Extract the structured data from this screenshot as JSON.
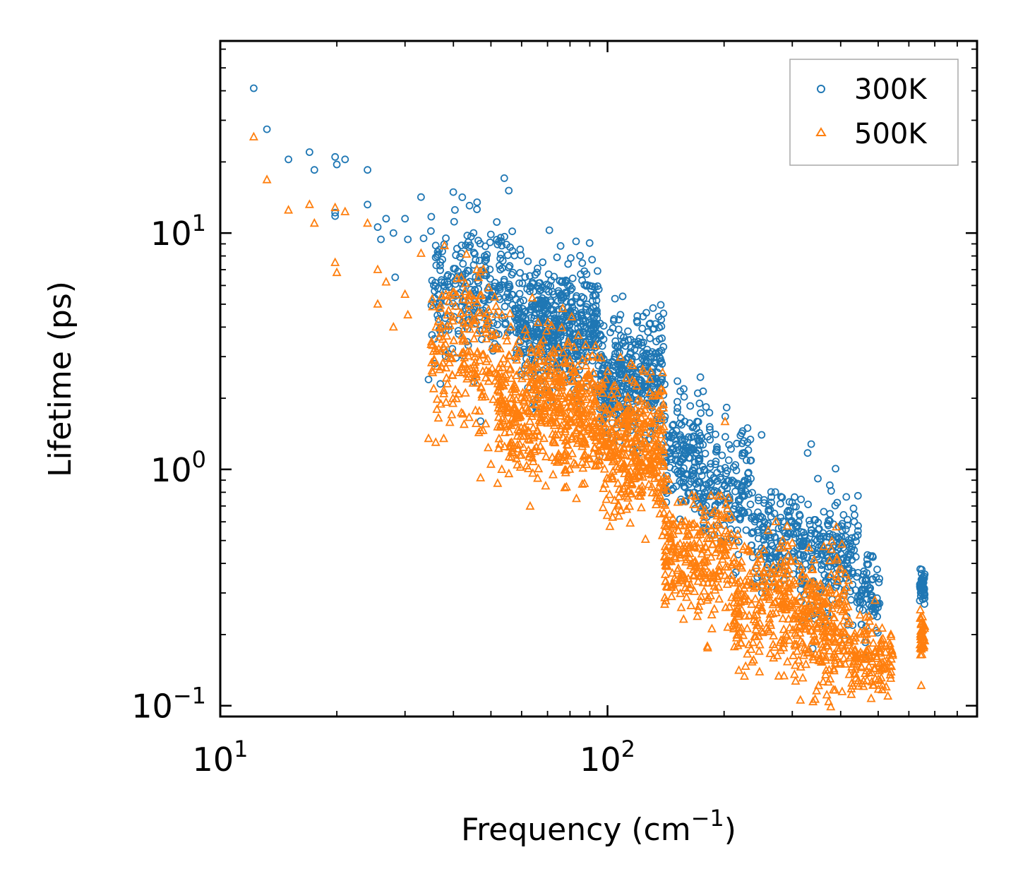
{
  "chart_data": {
    "type": "scatter",
    "title": "",
    "x_axis": {
      "label_base": "Frequency (cm",
      "label_sup": "−1",
      "label_end": ")",
      "scale": "log",
      "range": [
        10,
        900
      ],
      "ticks": [
        {
          "base": "10",
          "exp": "1",
          "value": 10
        },
        {
          "base": "10",
          "exp": "2",
          "value": 100
        }
      ]
    },
    "y_axis": {
      "label": "Lifetime (ps)",
      "scale": "log",
      "range": [
        0.09,
        65
      ],
      "ticks": [
        {
          "base": "10",
          "exp": "−1",
          "value": 0.1
        },
        {
          "base": "10",
          "exp": "0",
          "value": 1
        },
        {
          "base": "10",
          "exp": "1",
          "value": 10
        }
      ]
    },
    "legend": {
      "position": "top-right"
    },
    "series": [
      {
        "name": "300K",
        "marker": "circle",
        "color": "#1f77b4",
        "highlight_points": [
          [
            12.2,
            41
          ],
          [
            13.2,
            27.5
          ],
          [
            15.0,
            20.5
          ],
          [
            17.0,
            22
          ],
          [
            17.5,
            18.5
          ],
          [
            19.8,
            21
          ],
          [
            20.0,
            19.5
          ],
          [
            21.0,
            20.5
          ],
          [
            19.8,
            12.2
          ],
          [
            19.8,
            11.8
          ],
          [
            24.0,
            18.5
          ],
          [
            24.0,
            13.2
          ],
          [
            25.5,
            10.6
          ],
          [
            26.0,
            9.4
          ],
          [
            26.8,
            11.5
          ],
          [
            28.0,
            10.0
          ],
          [
            28.3,
            6.5
          ],
          [
            30.0,
            11.5
          ],
          [
            30.5,
            9.4
          ],
          [
            33.0,
            14.2
          ],
          [
            33.5,
            9.5
          ],
          [
            35.0,
            10.2
          ],
          [
            46.0,
            12.6
          ],
          [
            57.0,
            6.8
          ],
          [
            62.0,
            5.8
          ],
          [
            79.0,
            6.0
          ],
          [
            86.0,
            6.3
          ],
          [
            85.0,
            5.1
          ],
          [
            107.0,
            4.3
          ],
          [
            171.0,
            2.1
          ],
          [
            230.0,
            1.3
          ],
          [
            250.0,
            1.4
          ],
          [
            34.5,
            2.4
          ],
          [
            37.0,
            2.3
          ],
          [
            47.0,
            1.6
          ]
        ],
        "clusters": [
          {
            "from": 35,
            "to": 58,
            "center": 5.8,
            "spread": 0.35,
            "count": 260
          },
          {
            "from": 58,
            "to": 95,
            "center": 3.9,
            "spread": 0.28,
            "count": 520
          },
          {
            "from": 95,
            "to": 140,
            "center": 2.4,
            "spread": 0.28,
            "count": 380
          },
          {
            "from": 140,
            "to": 175,
            "center": 1.15,
            "spread": 0.28,
            "count": 170
          },
          {
            "from": 175,
            "to": 235,
            "center": 0.85,
            "spread": 0.3,
            "count": 170
          },
          {
            "from": 235,
            "to": 315,
            "center": 0.5,
            "spread": 0.22,
            "count": 160
          },
          {
            "from": 315,
            "to": 445,
            "center": 0.42,
            "spread": 0.3,
            "count": 230
          },
          {
            "from": 445,
            "to": 505,
            "center": 0.3,
            "spread": 0.18,
            "count": 70
          },
          {
            "from": 640,
            "to": 660,
            "center": 0.31,
            "spread": 0.08,
            "count": 40
          }
        ]
      },
      {
        "name": "500K",
        "marker": "triangle",
        "color": "#ff7f0e",
        "highlight_points": [
          [
            12.2,
            25.5
          ],
          [
            13.2,
            16.8
          ],
          [
            15.0,
            12.5
          ],
          [
            17.0,
            13.2
          ],
          [
            17.5,
            11.0
          ],
          [
            19.8,
            12.8
          ],
          [
            19.8,
            7.5
          ],
          [
            20.0,
            6.8
          ],
          [
            21.0,
            12.3
          ],
          [
            24.0,
            11.0
          ],
          [
            25.5,
            7.0
          ],
          [
            25.5,
            5.0
          ],
          [
            26.8,
            6.2
          ],
          [
            28.0,
            4.0
          ],
          [
            30.0,
            5.5
          ],
          [
            30.5,
            4.5
          ],
          [
            33.0,
            8.2
          ],
          [
            34.5,
            1.35
          ],
          [
            36.0,
            1.3
          ],
          [
            46.0,
            7.0
          ],
          [
            47.0,
            0.92
          ],
          [
            50.0,
            1.05
          ]
        ],
        "clusters": [
          {
            "from": 35,
            "to": 52,
            "center": 3.2,
            "spread": 0.38,
            "count": 200
          },
          {
            "from": 52,
            "to": 95,
            "center": 1.85,
            "spread": 0.32,
            "count": 560
          },
          {
            "from": 95,
            "to": 140,
            "center": 1.25,
            "spread": 0.3,
            "count": 380
          },
          {
            "from": 140,
            "to": 210,
            "center": 0.42,
            "spread": 0.3,
            "count": 270
          },
          {
            "from": 210,
            "to": 300,
            "center": 0.27,
            "spread": 0.3,
            "count": 220
          },
          {
            "from": 300,
            "to": 420,
            "center": 0.23,
            "spread": 0.3,
            "count": 260
          },
          {
            "from": 420,
            "to": 545,
            "center": 0.16,
            "spread": 0.2,
            "count": 140
          },
          {
            "from": 640,
            "to": 660,
            "center": 0.2,
            "spread": 0.1,
            "count": 40
          }
        ]
      }
    ]
  }
}
